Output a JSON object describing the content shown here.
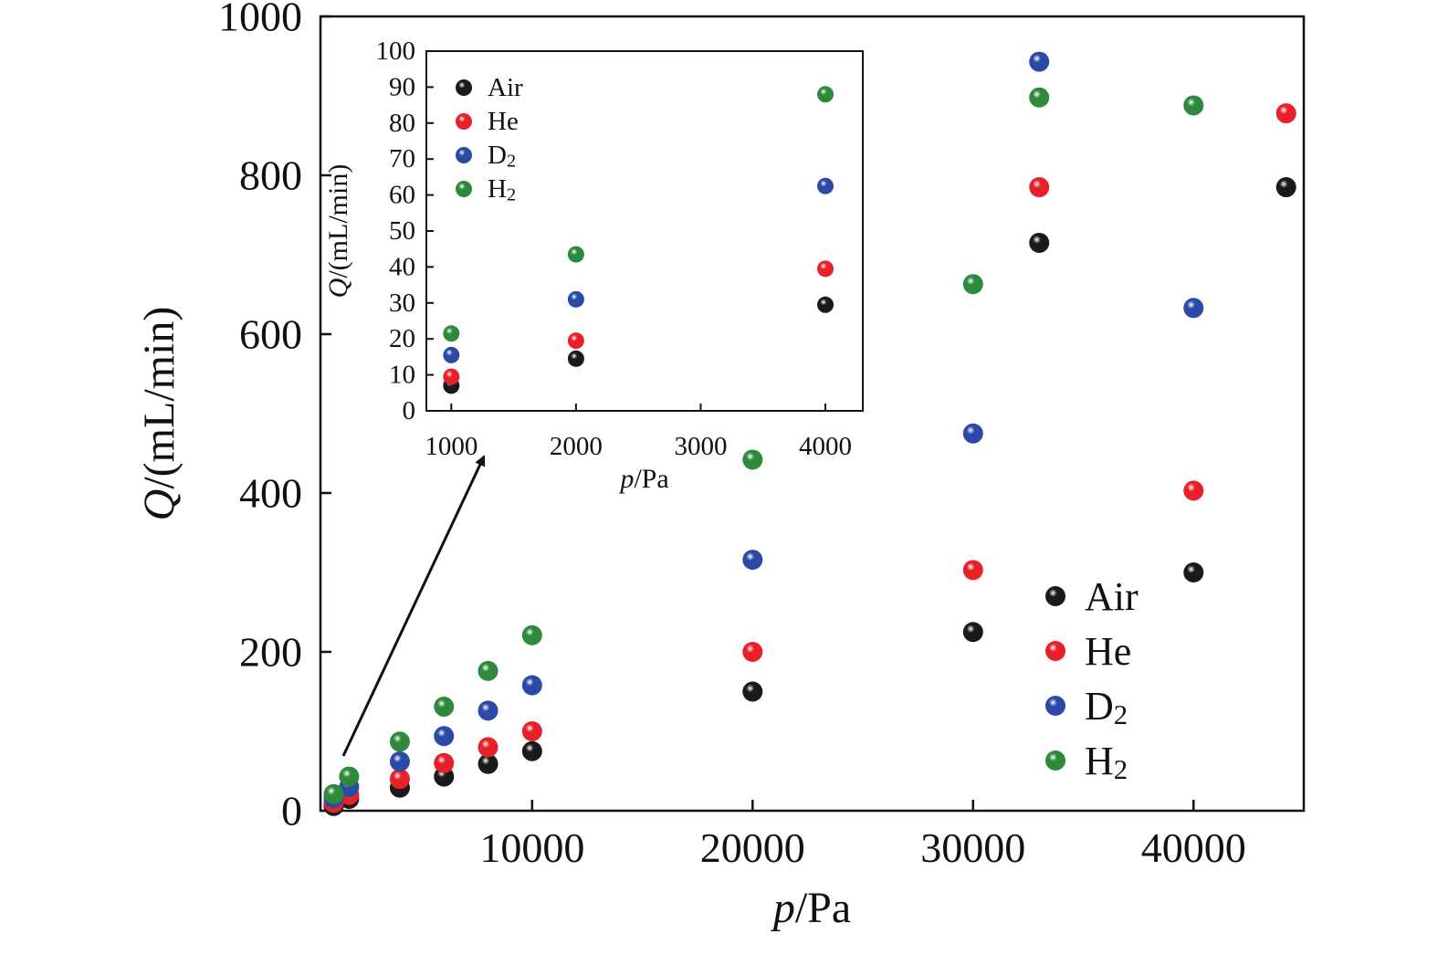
{
  "chart_data": [
    {
      "type": "scatter",
      "xlabel": {
        "var": "p",
        "unit": "/Pa"
      },
      "ylabel": {
        "var": "Q",
        "unit": "/(mL/min)"
      },
      "xlim": [
        400,
        45000
      ],
      "ylim": [
        0,
        1000
      ],
      "xticks": [
        "10000",
        "20000",
        "30000",
        "40000"
      ],
      "yticks": [
        "0",
        "200",
        "400",
        "600",
        "800",
        "1000"
      ],
      "legend_position": "bottom-right",
      "series": [
        {
          "name": "Air",
          "sub": "",
          "color": "#1a1a1a",
          "points": [
            [
              1000,
              6
            ],
            [
              1700,
              15
            ],
            [
              4000,
              29
            ],
            [
              6000,
              43
            ],
            [
              8000,
              59
            ],
            [
              10000,
              75
            ],
            [
              20000,
              150
            ],
            [
              30000,
              225
            ],
            [
              33000,
              715
            ],
            [
              40000,
              300
            ],
            [
              44200,
              785
            ]
          ]
        },
        {
          "name": "He",
          "sub": "",
          "color": "#e8202a",
          "points": [
            [
              1000,
              10
            ],
            [
              1700,
              20
            ],
            [
              4000,
              40
            ],
            [
              6000,
              60
            ],
            [
              8000,
              80
            ],
            [
              10000,
              100
            ],
            [
              20000,
              200
            ],
            [
              30000,
              303
            ],
            [
              33000,
              785
            ],
            [
              40000,
              403
            ],
            [
              44200,
              878
            ]
          ]
        },
        {
          "name": "D",
          "sub": "2",
          "color": "#2b4aa8",
          "points": [
            [
              1000,
              16
            ],
            [
              1700,
              30
            ],
            [
              4000,
              62
            ],
            [
              6000,
              94
            ],
            [
              8000,
              126
            ],
            [
              10000,
              158
            ],
            [
              20000,
              316
            ],
            [
              30000,
              475
            ],
            [
              33000,
              943
            ],
            [
              40000,
              633
            ]
          ]
        },
        {
          "name": "H",
          "sub": "2",
          "color": "#2e8a3a",
          "points": [
            [
              1000,
              21
            ],
            [
              1700,
              43
            ],
            [
              4000,
              87
            ],
            [
              6000,
              131
            ],
            [
              8000,
              176
            ],
            [
              10000,
              221
            ],
            [
              20000,
              442
            ],
            [
              30000,
              663
            ],
            [
              33000,
              898
            ],
            [
              40000,
              888
            ]
          ]
        }
      ]
    },
    {
      "type": "scatter",
      "inset": true,
      "xlabel": {
        "var": "p",
        "unit": "/Pa"
      },
      "ylabel": {
        "var": "Q",
        "unit": "/(mL/min)"
      },
      "xlim": [
        800,
        4300
      ],
      "ylim": [
        0,
        100
      ],
      "xticks": [
        "1000",
        "2000",
        "3000",
        "4000"
      ],
      "yticks": [
        "0",
        "10",
        "20",
        "30",
        "40",
        "50",
        "60",
        "70",
        "80",
        "90",
        "100"
      ],
      "legend_position": "top-left",
      "series": [
        {
          "name": "Air",
          "sub": "",
          "color": "#1a1a1a",
          "points": [
            [
              1000,
              7
            ],
            [
              2000,
              14.5
            ],
            [
              4000,
              29.5
            ]
          ]
        },
        {
          "name": "He",
          "sub": "",
          "color": "#e8202a",
          "points": [
            [
              1000,
              9.5
            ],
            [
              2000,
              19.5
            ],
            [
              4000,
              39.5
            ]
          ]
        },
        {
          "name": "D",
          "sub": "2",
          "color": "#2b4aa8",
          "points": [
            [
              1000,
              15.5
            ],
            [
              2000,
              31
            ],
            [
              4000,
              62.5
            ]
          ]
        },
        {
          "name": "H",
          "sub": "2",
          "color": "#2e8a3a",
          "points": [
            [
              1000,
              21.5
            ],
            [
              2000,
              43.5
            ],
            [
              4000,
              88
            ]
          ]
        }
      ]
    }
  ]
}
